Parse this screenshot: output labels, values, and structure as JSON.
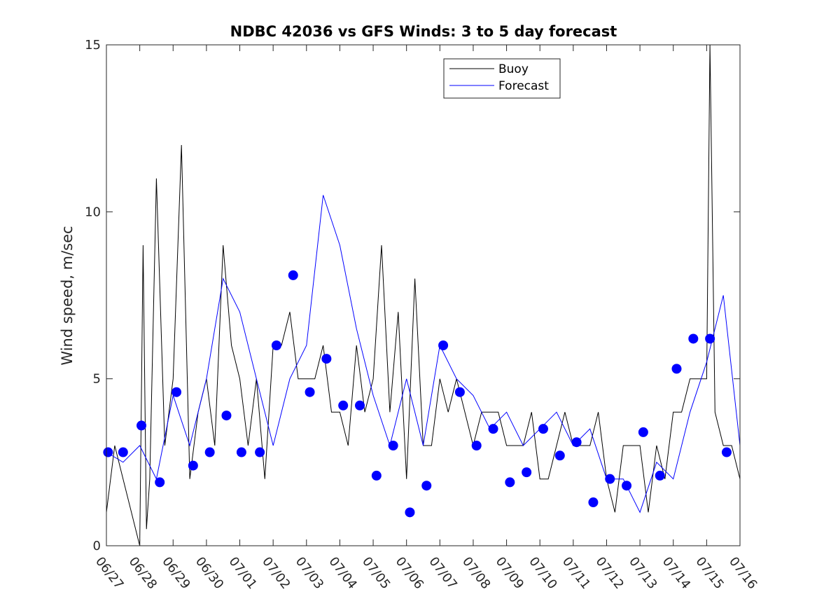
{
  "chart_data": {
    "type": "line",
    "title": "NDBC 42036 vs GFS Winds: 3 to 5 day forecast",
    "xlabel": "",
    "ylabel": "Wind speed, m/sec",
    "ylim": [
      0,
      15
    ],
    "yticks": [
      "0",
      "5",
      "10",
      "15"
    ],
    "xlim": [
      "2019-06-27",
      "2019-07-16"
    ],
    "xticks": [
      "06/27",
      "06/28",
      "06/29",
      "06/30",
      "07/01",
      "07/02",
      "07/03",
      "07/04",
      "07/05",
      "07/06",
      "07/07",
      "07/08",
      "07/09",
      "07/10",
      "07/11",
      "07/12",
      "07/13",
      "07/14",
      "07/15",
      "07/16"
    ],
    "legend": {
      "placement": "top-center-right",
      "entries": [
        "Buoy",
        "Forecast"
      ]
    },
    "colors": {
      "buoy": "#000000",
      "forecast": "#0000ff",
      "markers": "#0000ff"
    },
    "series": [
      {
        "name": "Buoy",
        "color": "#000000",
        "x_days_from_06_27": [
          0,
          0.25,
          0.5,
          0.75,
          1,
          1.1,
          1.2,
          1.3,
          1.5,
          1.75,
          2,
          2.25,
          2.5,
          2.75,
          3,
          3.25,
          3.5,
          3.75,
          4,
          4.25,
          4.5,
          4.75,
          5,
          5.25,
          5.5,
          5.75,
          6,
          6.25,
          6.5,
          6.75,
          7,
          7.25,
          7.5,
          7.75,
          8,
          8.25,
          8.5,
          8.75,
          9,
          9.25,
          9.5,
          9.75,
          10,
          10.25,
          10.5,
          10.75,
          11,
          11.25,
          11.5,
          11.75,
          12,
          12.25,
          12.5,
          12.75,
          13,
          13.25,
          13.5,
          13.75,
          14,
          14.25,
          14.5,
          14.75,
          15,
          15.25,
          15.5,
          15.75,
          16,
          16.25,
          16.5,
          16.75,
          17,
          17.25,
          17.5,
          17.75,
          18,
          18.1,
          18.25,
          18.5,
          18.75,
          19
        ],
        "y": [
          1,
          3,
          2,
          1,
          0,
          9,
          0.5,
          2,
          11,
          3,
          5,
          12,
          2,
          4,
          5,
          3,
          9,
          6,
          5,
          3,
          5,
          2,
          6,
          6,
          7,
          5,
          5,
          5,
          6,
          4,
          4,
          3,
          6,
          4,
          5,
          9,
          4,
          7,
          2,
          8,
          3,
          3,
          5,
          4,
          5,
          4,
          3,
          4,
          4,
          4,
          3,
          3,
          3,
          4,
          2,
          2,
          3,
          4,
          3,
          3,
          3,
          4,
          2,
          1,
          3,
          3,
          3,
          1,
          3,
          2,
          4,
          4,
          5,
          5,
          5,
          15,
          4,
          3,
          3,
          2
        ]
      },
      {
        "name": "Forecast",
        "color": "#0000ff",
        "x_days_from_06_27": [
          0,
          0.5,
          1,
          1.5,
          2,
          2.5,
          3,
          3.5,
          4,
          4.5,
          5,
          5.5,
          6,
          6.5,
          7,
          7.5,
          8,
          8.5,
          9,
          9.5,
          10,
          10.5,
          11,
          11.5,
          12,
          12.5,
          13,
          13.5,
          14,
          14.5,
          15,
          15.5,
          16,
          16.5,
          17,
          17.5,
          18,
          18.5,
          19
        ],
        "y": [
          2.8,
          2.5,
          3,
          2,
          4.5,
          3,
          5,
          8,
          7,
          5,
          3,
          5,
          6,
          10.5,
          9,
          6.5,
          4.5,
          3,
          5,
          3,
          6,
          5,
          4.5,
          3.5,
          4,
          3,
          3.5,
          4,
          3,
          3.5,
          2,
          2,
          1,
          2.5,
          2,
          4,
          5.5,
          7.5,
          3
        ]
      },
      {
        "name": "",
        "type": "scatter",
        "color": "#0000ff",
        "x_days_from_06_27": [
          0.05,
          0.5,
          1.05,
          1.6,
          2.1,
          2.6,
          3.1,
          3.6,
          4.05,
          4.6,
          5.1,
          5.6,
          6.1,
          6.6,
          7.1,
          7.6,
          8.1,
          8.6,
          9.1,
          9.6,
          10.1,
          10.6,
          11.1,
          11.6,
          12.1,
          12.6,
          13.1,
          13.6,
          14.1,
          14.6,
          15.1,
          15.6,
          16.1,
          16.6,
          17.1,
          17.6,
          18.1,
          18.6
        ],
        "y": [
          2.8,
          2.8,
          3.6,
          1.9,
          4.6,
          2.4,
          2.8,
          3.9,
          2.8,
          2.8,
          6,
          8.1,
          4.6,
          5.6,
          4.2,
          4.2,
          2.1,
          3,
          1,
          1.8,
          6,
          4.6,
          3,
          3.5,
          1.9,
          2.2,
          3.5,
          2.7,
          3.1,
          1.3,
          2,
          1.8,
          3.4,
          2.1,
          5.3,
          6.2,
          6.2,
          2.8
        ]
      }
    ],
    "marker_series": {
      "x_days_from_06_27": [
        0.05,
        0.5,
        1.05,
        1.6,
        2.1,
        2.6,
        3.1,
        3.6,
        4.05,
        4.6,
        5.1,
        5.6,
        6.1,
        6.6,
        7.1,
        7.6,
        8.1,
        8.6,
        9.1,
        9.6,
        10.1,
        10.6,
        11.1,
        11.6,
        12.1,
        12.6,
        13.1,
        13.6,
        14.1,
        14.6,
        15.1,
        15.6,
        16.1,
        16.6,
        17.1,
        17.6,
        18.1,
        18.6
      ],
      "y": [
        2.8,
        2.8,
        3.6,
        1.9,
        4.6,
        2.4,
        2.8,
        3.9,
        2.8,
        2.8,
        6,
        8.1,
        4.6,
        5.6,
        4.2,
        4.2,
        2.1,
        3,
        1,
        1.8,
        6,
        4.6,
        3,
        3.5,
        1.9,
        2.2,
        3.5,
        2.7,
        3.1,
        1.3,
        2,
        1.8,
        3.4,
        2.1,
        5.3,
        6.2,
        6.2,
        2.8
      ]
    }
  }
}
